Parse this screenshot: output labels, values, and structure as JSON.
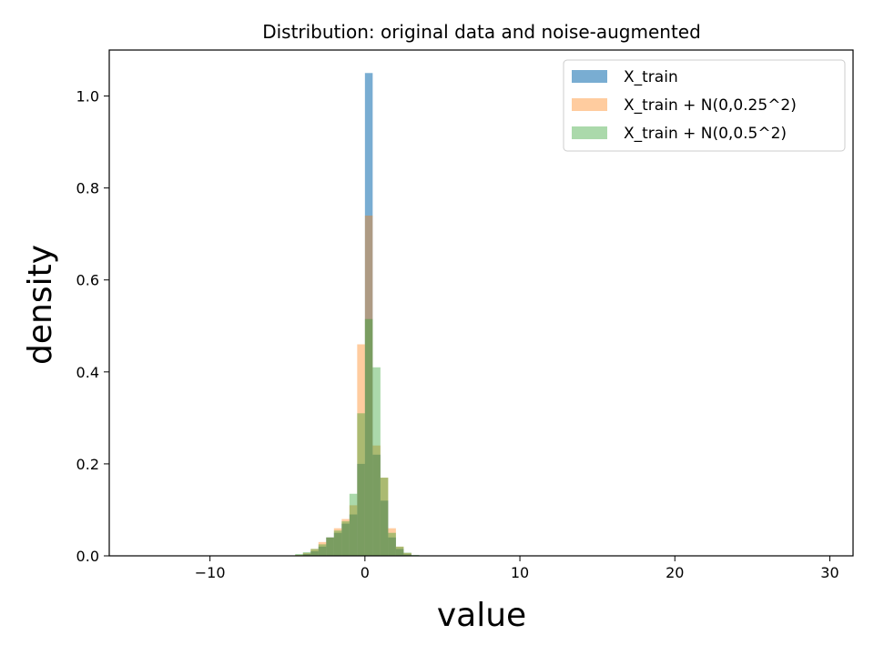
{
  "chart_data": {
    "type": "bar",
    "title": "Distribution: original data and noise-augmented",
    "xlabel": "value",
    "ylabel": "density",
    "xlim": [
      -16.5,
      31.5
    ],
    "ylim": [
      0,
      1.1
    ],
    "xticks": [
      -10,
      0,
      10,
      20,
      30
    ],
    "xtick_labels": [
      "−10",
      "0",
      "10",
      "20",
      "30"
    ],
    "yticks": [
      0.0,
      0.2,
      0.4,
      0.6,
      0.8,
      1.0
    ],
    "ytick_labels": [
      "0.0",
      "0.2",
      "0.4",
      "0.6",
      "0.8",
      "1.0"
    ],
    "grid": false,
    "legend_position": "top-right",
    "series": [
      {
        "name": "X_train",
        "color": "#1f77b4",
        "opacity": 0.6,
        "bins": [
          {
            "x0": -13.0,
            "x1": -12.5,
            "value": 0.001
          },
          {
            "x0": -4.0,
            "x1": -3.5,
            "value": 0.004
          },
          {
            "x0": -3.5,
            "x1": -3.0,
            "value": 0.01
          },
          {
            "x0": -3.0,
            "x1": -2.5,
            "value": 0.02
          },
          {
            "x0": -2.5,
            "x1": -2.0,
            "value": 0.04
          },
          {
            "x0": -2.0,
            "x1": -1.5,
            "value": 0.05
          },
          {
            "x0": -1.5,
            "x1": -1.0,
            "value": 0.07
          },
          {
            "x0": -1.0,
            "x1": -0.5,
            "value": 0.09
          },
          {
            "x0": -0.5,
            "x1": 0.0,
            "value": 0.2
          },
          {
            "x0": 0.0,
            "x1": 0.5,
            "value": 1.05
          },
          {
            "x0": 0.5,
            "x1": 1.0,
            "value": 0.22
          },
          {
            "x0": 1.0,
            "x1": 1.5,
            "value": 0.12
          },
          {
            "x0": 1.5,
            "x1": 2.0,
            "value": 0.04
          },
          {
            "x0": 2.0,
            "x1": 2.5,
            "value": 0.015
          },
          {
            "x0": 2.5,
            "x1": 3.0,
            "value": 0.003
          },
          {
            "x0": 29.0,
            "x1": 29.5,
            "value": 0.001
          }
        ]
      },
      {
        "name": "X_train + N(0,0.25^2)",
        "color": "#ff7f0e",
        "opacity": 0.4,
        "bins": [
          {
            "x0": -4.5,
            "x1": -4.0,
            "value": 0.002
          },
          {
            "x0": -4.0,
            "x1": -3.5,
            "value": 0.006
          },
          {
            "x0": -3.5,
            "x1": -3.0,
            "value": 0.015
          },
          {
            "x0": -3.0,
            "x1": -2.5,
            "value": 0.03
          },
          {
            "x0": -2.5,
            "x1": -2.0,
            "value": 0.04
          },
          {
            "x0": -2.0,
            "x1": -1.5,
            "value": 0.06
          },
          {
            "x0": -1.5,
            "x1": -1.0,
            "value": 0.08
          },
          {
            "x0": -1.0,
            "x1": -0.5,
            "value": 0.11
          },
          {
            "x0": -0.5,
            "x1": 0.0,
            "value": 0.46
          },
          {
            "x0": 0.0,
            "x1": 0.5,
            "value": 0.74
          },
          {
            "x0": 0.5,
            "x1": 1.0,
            "value": 0.24
          },
          {
            "x0": 1.0,
            "x1": 1.5,
            "value": 0.17
          },
          {
            "x0": 1.5,
            "x1": 2.0,
            "value": 0.06
          },
          {
            "x0": 2.0,
            "x1": 2.5,
            "value": 0.02
          },
          {
            "x0": 2.5,
            "x1": 3.0,
            "value": 0.006
          }
        ]
      },
      {
        "name": "X_train + N(0,0.5^2)",
        "color": "#2ca02c",
        "opacity": 0.4,
        "bins": [
          {
            "x0": -4.5,
            "x1": -4.0,
            "value": 0.004
          },
          {
            "x0": -4.0,
            "x1": -3.5,
            "value": 0.008
          },
          {
            "x0": -3.5,
            "x1": -3.0,
            "value": 0.015
          },
          {
            "x0": -3.0,
            "x1": -2.5,
            "value": 0.025
          },
          {
            "x0": -2.5,
            "x1": -2.0,
            "value": 0.04
          },
          {
            "x0": -2.0,
            "x1": -1.5,
            "value": 0.055
          },
          {
            "x0": -1.5,
            "x1": -1.0,
            "value": 0.075
          },
          {
            "x0": -1.0,
            "x1": -0.5,
            "value": 0.135
          },
          {
            "x0": -0.5,
            "x1": 0.0,
            "value": 0.31
          },
          {
            "x0": 0.0,
            "x1": 0.5,
            "value": 0.515
          },
          {
            "x0": 0.5,
            "x1": 1.0,
            "value": 0.41
          },
          {
            "x0": 1.0,
            "x1": 1.5,
            "value": 0.17
          },
          {
            "x0": 1.5,
            "x1": 2.0,
            "value": 0.05
          },
          {
            "x0": 2.0,
            "x1": 2.5,
            "value": 0.02
          },
          {
            "x0": 2.5,
            "x1": 3.0,
            "value": 0.007
          },
          {
            "x0": 3.0,
            "x1": 3.5,
            "value": 0.002
          }
        ]
      }
    ]
  }
}
